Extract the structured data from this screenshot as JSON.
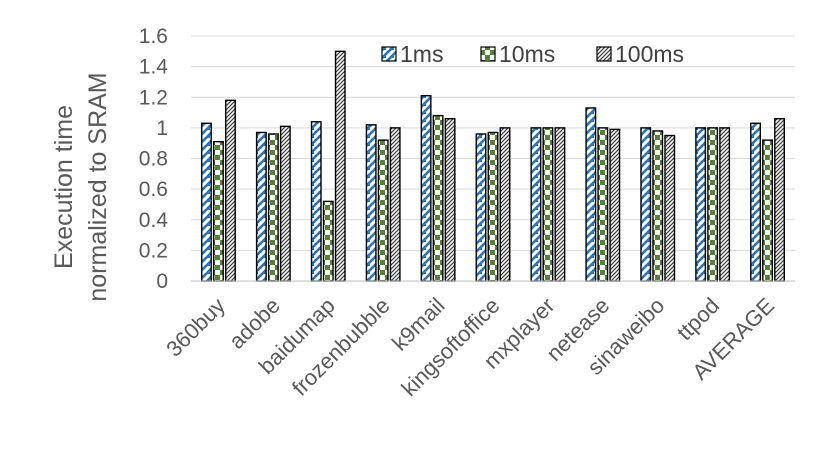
{
  "chart_data": {
    "type": "bar",
    "title": "",
    "xlabel": "",
    "ylabel": [
      "Execution time",
      "normalized to SRAM"
    ],
    "ylim": [
      0,
      1.6
    ],
    "yticks": [
      "0",
      "0.2",
      "0.4",
      "0.6",
      "0.8",
      "1",
      "1.2",
      "1.4",
      "1.6"
    ],
    "grid": true,
    "legend_position": "top-right",
    "categories": [
      "360buy",
      "adobe",
      "baidumap",
      "frozenbubble",
      "k9mail",
      "kingsoftoffice",
      "mxplayer",
      "netease",
      "sinaweibo",
      "ttpod",
      "AVERAGE"
    ],
    "series": [
      {
        "name": "1ms",
        "color": "#2e75b6",
        "pattern": "diagonal-check",
        "values": [
          1.03,
          0.97,
          1.04,
          1.02,
          1.21,
          0.96,
          1.0,
          1.13,
          1.0,
          1.0,
          1.03
        ]
      },
      {
        "name": "10ms",
        "color": "#548235",
        "pattern": "large-checkerboard",
        "values": [
          0.91,
          0.96,
          0.52,
          0.92,
          1.08,
          0.97,
          1.0,
          1.0,
          0.98,
          1.0,
          0.92
        ]
      },
      {
        "name": "100ms",
        "color": "#404040",
        "pattern": "dense-diagonal",
        "values": [
          1.18,
          1.01,
          1.5,
          1.0,
          1.06,
          1.0,
          1.0,
          0.99,
          0.95,
          1.0,
          1.06
        ]
      }
    ]
  }
}
